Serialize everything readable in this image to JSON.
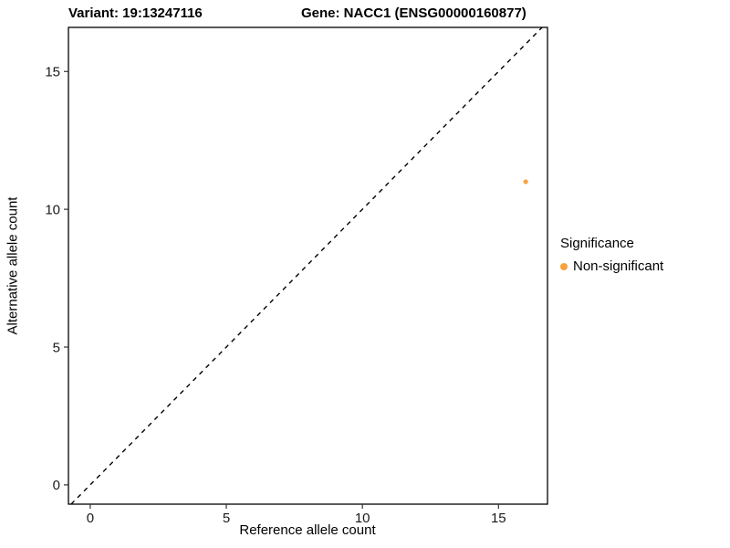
{
  "chart_data": {
    "type": "scatter",
    "titles": {
      "left": "Variant: 19:13247116",
      "right": "Gene: NACC1 (ENSG00000160877)"
    },
    "xlabel": "Reference allele count",
    "ylabel": "Alternative allele count",
    "xlim": [
      -0.8,
      16.8
    ],
    "ylim": [
      -0.7,
      16.6
    ],
    "x_ticks": [
      0,
      5,
      10,
      15
    ],
    "y_ticks": [
      0,
      5,
      10,
      15
    ],
    "grid": false,
    "panel_border_color": "#000000",
    "identity_line": {
      "style": "dashed",
      "color": "#000000",
      "from": [
        -0.7,
        -0.7
      ],
      "to": [
        16.6,
        16.6
      ]
    },
    "legend": {
      "title": "Significance",
      "position": "right",
      "items": [
        {
          "label": "Non-significant",
          "color": "#F9A13D"
        }
      ]
    },
    "series": [
      {
        "name": "Non-significant",
        "color": "#F9A13D",
        "points": [
          {
            "x": 16,
            "y": 11
          }
        ]
      }
    ]
  }
}
